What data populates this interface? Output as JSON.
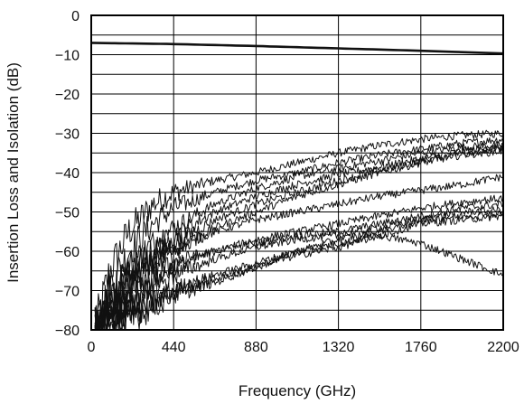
{
  "chart_data": {
    "type": "line",
    "title": "",
    "xlabel": "Frequency (GHz)",
    "ylabel": "Insertion Loss and Isolation (dB)",
    "xlim": [
      0,
      2200
    ],
    "ylim": [
      -80,
      0
    ],
    "x_ticks": [
      0,
      440,
      880,
      1320,
      1760,
      2200
    ],
    "x_tick_labels": [
      "0",
      "440",
      "880",
      "1320",
      "1760",
      "2200"
    ],
    "y_ticks": [
      0,
      -10,
      -20,
      -30,
      -40,
      -50,
      -60,
      -70,
      -80
    ],
    "y_tick_labels": [
      "0",
      "−10",
      "−20",
      "−30",
      "−40",
      "−50",
      "−60",
      "−70",
      "−80"
    ],
    "grid": true,
    "y_minor_grid_step": 5,
    "insertion_loss": {
      "x": [
        0,
        440,
        880,
        1320,
        1760,
        2200
      ],
      "y": [
        -7,
        -7.3,
        -7.8,
        -8.4,
        -9.0,
        -9.7
      ]
    },
    "isolation_traces": [
      {
        "x": [
          20,
          100,
          200,
          330,
          440,
          660,
          880,
          1100,
          1320,
          1540,
          1760,
          1980,
          2200
        ],
        "y": [
          -80,
          -65,
          -55,
          -48,
          -45,
          -42,
          -40,
          -37.5,
          -35,
          -33,
          -31.5,
          -30.5,
          -30
        ]
      },
      {
        "x": [
          20,
          100,
          200,
          330,
          440,
          660,
          880,
          1100,
          1320,
          1540,
          1760,
          1980,
          2200
        ],
        "y": [
          -80,
          -69,
          -60,
          -53,
          -49,
          -45,
          -42,
          -40,
          -37.5,
          -35.5,
          -34,
          -32.5,
          -31.5
        ]
      },
      {
        "x": [
          20,
          100,
          200,
          330,
          440,
          660,
          880,
          1100,
          1320,
          1540,
          1760,
          1980,
          2200
        ],
        "y": [
          -80,
          -72,
          -64,
          -58,
          -54,
          -48,
          -44,
          -41,
          -39,
          -37,
          -35,
          -33.5,
          -33
        ]
      },
      {
        "x": [
          20,
          100,
          200,
          330,
          440,
          660,
          880,
          1100,
          1320,
          1540,
          1760,
          1980,
          2200
        ],
        "y": [
          -80,
          -73,
          -66,
          -60,
          -56,
          -50,
          -46,
          -43,
          -40.5,
          -38.5,
          -36.5,
          -34.5,
          -33.5
        ]
      },
      {
        "x": [
          20,
          100,
          200,
          330,
          440,
          660,
          880,
          1100,
          1320,
          1540,
          1760,
          1980,
          2200
        ],
        "y": [
          -80,
          -75,
          -68,
          -62,
          -58,
          -52,
          -48,
          -45,
          -42,
          -39.5,
          -37,
          -35,
          -34
        ]
      },
      {
        "x": [
          20,
          100,
          200,
          330,
          440,
          660,
          880,
          1100,
          1320,
          1540,
          1760,
          1980,
          2200
        ],
        "y": [
          -80,
          -76,
          -70,
          -64,
          -60,
          -54,
          -50,
          -46,
          -43,
          -40,
          -37.5,
          -35.5,
          -34.5
        ]
      },
      {
        "x": [
          20,
          100,
          200,
          330,
          440,
          660,
          880,
          1100,
          1320,
          1540,
          1760,
          1980,
          2200
        ],
        "y": [
          -80,
          -74,
          -68,
          -63,
          -59,
          -55,
          -52,
          -50,
          -48,
          -46,
          -44.5,
          -43,
          -41
        ]
      },
      {
        "x": [
          20,
          100,
          200,
          330,
          440,
          660,
          880,
          1100,
          1320,
          1540,
          1760,
          1980,
          2200
        ],
        "y": [
          -80,
          -77,
          -71,
          -67,
          -63,
          -60,
          -57,
          -55,
          -53,
          -51,
          -49,
          -47.5,
          -46.5
        ]
      },
      {
        "x": [
          20,
          100,
          200,
          330,
          440,
          660,
          880,
          1100,
          1320,
          1540,
          1760,
          1980,
          2200
        ],
        "y": [
          -80,
          -76,
          -72,
          -68,
          -64,
          -60,
          -58,
          -56,
          -55,
          -53,
          -51,
          -49,
          -48
        ]
      },
      {
        "x": [
          20,
          100,
          200,
          330,
          440,
          660,
          880,
          1100,
          1320,
          1540,
          1760,
          1980,
          2200
        ],
        "y": [
          -80,
          -77,
          -74,
          -70,
          -66,
          -62,
          -59,
          -57,
          -56,
          -54,
          -52,
          -50,
          -49.5
        ]
      },
      {
        "x": [
          20,
          100,
          200,
          330,
          440,
          660,
          880,
          1100,
          1320,
          1540,
          1760,
          1980,
          2200
        ],
        "y": [
          -80,
          -78,
          -76,
          -73,
          -70,
          -66,
          -63,
          -60,
          -58,
          -56,
          -53,
          -52,
          -51
        ]
      },
      {
        "x": [
          20,
          100,
          200,
          330,
          440,
          660,
          880,
          1100,
          1320,
          1540,
          1760,
          1980,
          2200
        ],
        "y": [
          -80,
          -79,
          -77,
          -74,
          -71,
          -68,
          -64,
          -60,
          -57,
          -55,
          -52,
          -51,
          -50.5
        ]
      },
      {
        "x": [
          20,
          100,
          200,
          330,
          440,
          660,
          880,
          1100,
          1320,
          1540,
          1760,
          1980,
          2200
        ],
        "y": [
          -80,
          -78,
          -75,
          -72,
          -70,
          -67,
          -64,
          -61,
          -59,
          -56,
          -58,
          -62,
          -66
        ]
      }
    ]
  }
}
